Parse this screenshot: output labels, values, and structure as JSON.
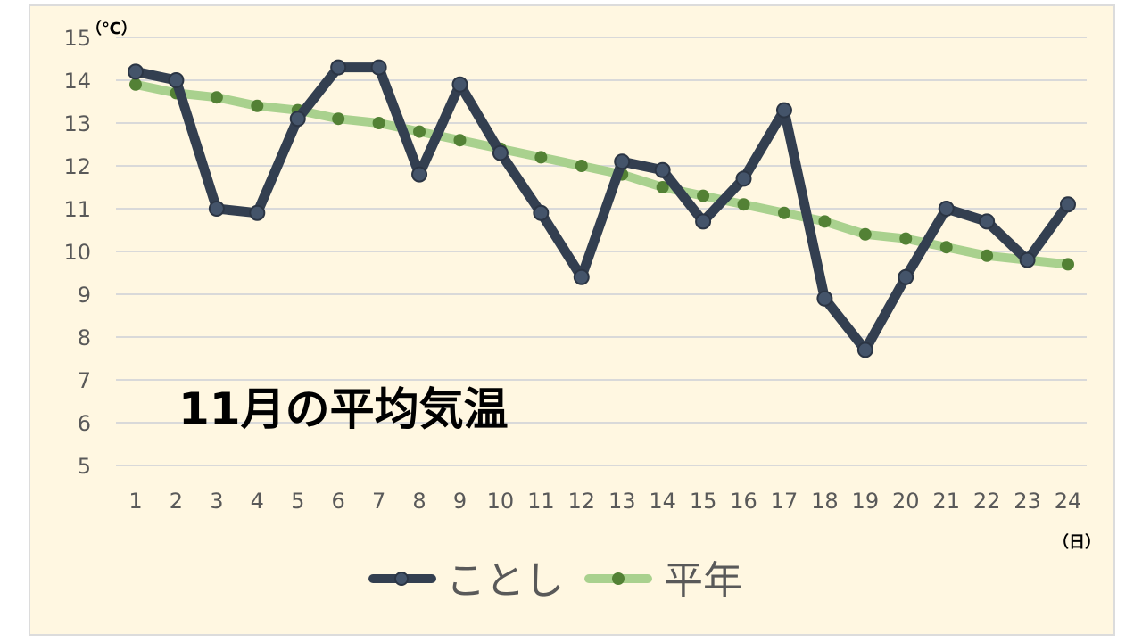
{
  "chart_data": {
    "type": "line",
    "title": "11月の平均気温",
    "ylabel": "（℃）",
    "xlabel": "（日）",
    "ylim": [
      5,
      15
    ],
    "yticks": [
      5,
      6,
      7,
      8,
      9,
      10,
      11,
      12,
      13,
      14,
      15
    ],
    "x": [
      1,
      2,
      3,
      4,
      5,
      6,
      7,
      8,
      9,
      10,
      11,
      12,
      13,
      14,
      15,
      16,
      17,
      18,
      19,
      20,
      21,
      22,
      23,
      24
    ],
    "grid": true,
    "legend_position": "bottom",
    "series": [
      {
        "name": "ことし",
        "color": "#333f50",
        "marker_color": "#44546a",
        "values": [
          14.2,
          14.0,
          11.0,
          10.9,
          13.1,
          14.3,
          14.3,
          11.8,
          13.9,
          12.3,
          10.9,
          9.4,
          12.1,
          11.9,
          10.7,
          11.7,
          13.3,
          8.9,
          7.7,
          9.4,
          11.0,
          10.7,
          9.8,
          11.1
        ]
      },
      {
        "name": "平年",
        "color": "#a9d18e",
        "marker_color": "#538135",
        "values": [
          13.9,
          13.7,
          13.6,
          13.4,
          13.3,
          13.1,
          13.0,
          12.8,
          12.6,
          12.4,
          12.2,
          12.0,
          11.8,
          11.5,
          11.3,
          11.1,
          10.9,
          10.7,
          10.4,
          10.3,
          10.1,
          9.9,
          9.8,
          9.7
        ]
      }
    ]
  }
}
